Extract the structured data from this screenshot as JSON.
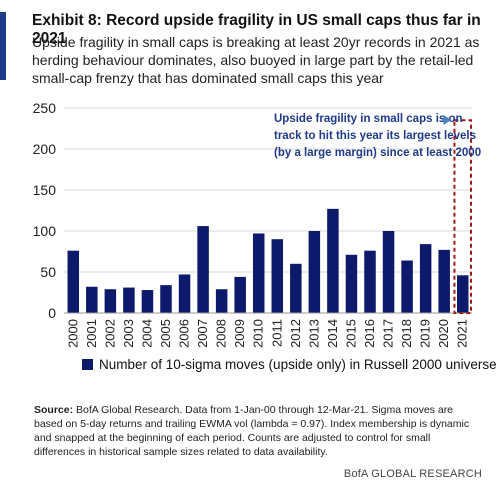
{
  "exhibit": {
    "title": "Exhibit 8: Record upside fragility in US small caps thus far in 2021",
    "subtitle": "Upside fragility in small caps is breaking at least 20yr records in 2021 as herding behaviour dominates, also buoyed in large part by the retail-led small-cap frenzy that has dominated small caps this year"
  },
  "chart_data": {
    "type": "bar",
    "categories": [
      "2000",
      "2001",
      "2002",
      "2003",
      "2004",
      "2005",
      "2006",
      "2007",
      "2008",
      "2009",
      "2010",
      "2011",
      "2012",
      "2013",
      "2014",
      "2015",
      "2016",
      "2017",
      "2018",
      "2019",
      "2020",
      "2021"
    ],
    "series": [
      {
        "name": "Number of 10-sigma moves (upside only) in Russell 2000 universe",
        "values": [
          76,
          32,
          29,
          31,
          28,
          34,
          47,
          106,
          29,
          44,
          97,
          90,
          60,
          100,
          127,
          71,
          76,
          100,
          64,
          84,
          77,
          46
        ]
      }
    ],
    "ylim": [
      0,
      250
    ],
    "yticks": [
      0,
      50,
      100,
      150,
      200,
      250
    ],
    "grid": true,
    "bar_color": "#0d1a6b",
    "annotation": {
      "text": [
        "Upside fragility in small caps is on",
        "track to hit this year its largest levels",
        "(by a large margin) since at least 2000"
      ],
      "color": "#1f3a8a",
      "highlight_category": "2021",
      "highlight_top": 235,
      "highlight_color": "#a01a1a",
      "arrow_color": "#4f81bd"
    }
  },
  "source": {
    "label": "Source:",
    "text": "BofA Global Research. Data from 1-Jan-00 through 12-Mar-21. Sigma moves are based on 5-day returns and trailing EWMA vol (lambda = 0.97). Index membership is dynamic and snapped at the beginning of each period. Counts are adjusted to control for small differences in historical sample sizes related to data availability."
  },
  "brand": "BofA GLOBAL RESEARCH"
}
